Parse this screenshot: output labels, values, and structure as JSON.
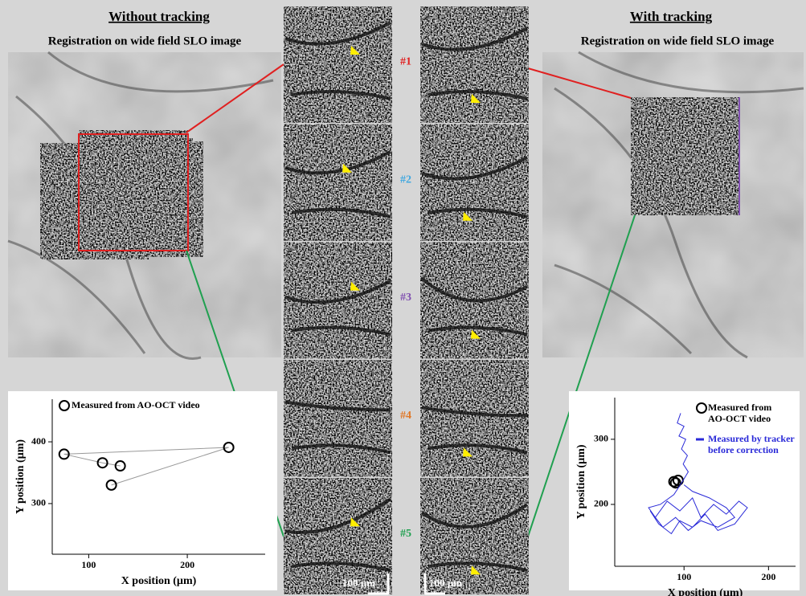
{
  "left_panel": {
    "title": "Without tracking",
    "subtitle": "Registration on wide field SLO image"
  },
  "right_panel": {
    "title": "With tracking",
    "subtitle": "Registration on wide field SLO image"
  },
  "frames": {
    "labels": [
      "#1",
      "#2",
      "#3",
      "#4",
      "#5"
    ],
    "colors": [
      "#e02020",
      "#40a8e0",
      "#8050b0",
      "#e07828",
      "#20a050"
    ]
  },
  "scale_bars": [
    "100 µm",
    "100 µm"
  ],
  "chart_data": [
    {
      "type": "scatter",
      "connected": true,
      "line_color": "#999999",
      "x_label": "X position (µm)",
      "y_label": "Y position (µm)",
      "xlim": [
        63,
        279
      ],
      "ylim": [
        218,
        469
      ],
      "xticks": [
        100,
        200
      ],
      "yticks": [
        300,
        400
      ],
      "series": [
        {
          "name": "Measured from AO-OCT video",
          "color": "#000000",
          "x": [
            132,
            114,
            75,
            242,
            123
          ],
          "values": [
            361,
            366,
            380,
            391,
            330
          ]
        }
      ]
    },
    {
      "type": "scatter",
      "connected": false,
      "x_label": "X position (µm)",
      "y_label": "Y position (µm)",
      "xlim": [
        18,
        232
      ],
      "ylim": [
        105,
        364
      ],
      "xticks": [
        100,
        200
      ],
      "yticks": [
        200,
        300
      ],
      "series": [
        {
          "name": "Measured from AO-OCT video",
          "color": "#000000",
          "x": [
            88,
            93,
            90
          ],
          "values": [
            235,
            237,
            233
          ]
        },
        {
          "name": "Measured by tracker before correction",
          "color": "#2a2ad8",
          "style": "line",
          "x": [
            96,
            92,
            100,
            94,
            102,
            97,
            104,
            99,
            105,
            98,
            88,
            72,
            58,
            66,
            80,
            95,
            110,
            120,
            135,
            150,
            165,
            175,
            160,
            140,
            125,
            110,
            95,
            85,
            70,
            60,
            75,
            90,
            105,
            120,
            140,
            160,
            150,
            130,
            110,
            100
          ],
          "values": [
            340,
            325,
            320,
            305,
            300,
            285,
            275,
            262,
            250,
            235,
            215,
            200,
            195,
            180,
            205,
            190,
            210,
            180,
            200,
            185,
            205,
            195,
            170,
            160,
            185,
            165,
            175,
            155,
            170,
            190,
            165,
            180,
            160,
            175,
            165,
            180,
            195,
            210,
            220,
            230
          ]
        }
      ]
    }
  ]
}
